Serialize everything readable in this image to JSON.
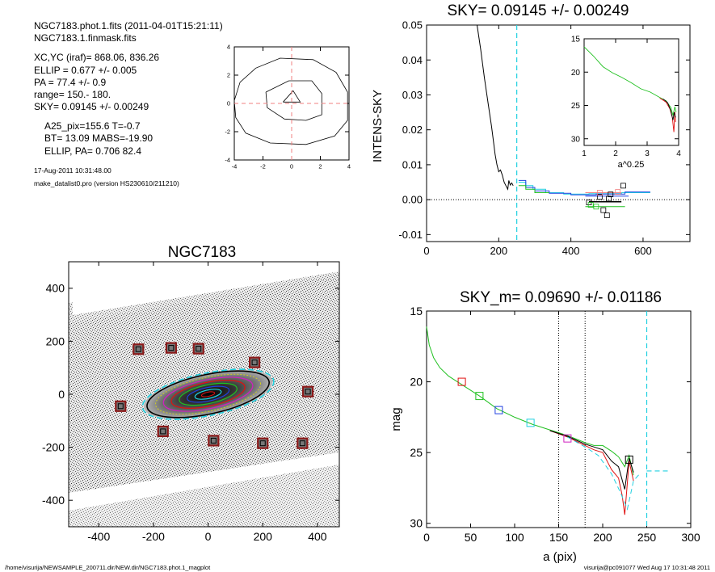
{
  "header": {
    "line1": "NGC7183.phot.1.fits  (2011-04-01T15:21:11)",
    "line2": "NGC7183.1.finmask.fits",
    "xcyc": "XC,YC (iraf)=   868.06, 836.26",
    "ellip": "ELLIP = 0.677 +/- 0.005",
    "pa": "PA    = 77.4 +/-   0.9",
    "range": "range=  150.-  180.",
    "sky": "SKY= 0.09145 +/- 0.00249",
    "a25": "A25_pix=155.6   T=-0.7",
    "bt": "BT=  13.09   MABS=-19.90",
    "ellip_pa": "ELLIP, PA= 0.706   82.4",
    "date": "17-Aug-2011 10:31:48.00",
    "prog": "make_datalist0.pro (version HS230610/211210)"
  },
  "footer": {
    "path": "/home/visurija/NEWSAMPLE_200711.dir/NEW.dir/NGC7183.phot.1_magplot",
    "stamp": "visurija@pc091077  Wed Aug 17 10:31:48 2011"
  },
  "colors": {
    "black": "#000000",
    "red": "#e01010",
    "green": "#20c020",
    "blue": "#2040e0",
    "cyan": "#20d0e0",
    "magenta": "#d020c0",
    "darkred": "#8b1a1a",
    "salmon": "#f08080"
  },
  "chart_data": [
    {
      "id": "contour",
      "type": "contour",
      "xlim": [
        -4,
        4
      ],
      "ylim": [
        -4,
        4
      ],
      "xticks": [
        "-4",
        "-2",
        "0",
        "2",
        "4"
      ],
      "yticks": [
        "-4",
        "-2",
        "0",
        "2",
        "4"
      ],
      "contours": [
        [
          [
            -4,
            0.2
          ],
          [
            -3.6,
            1.5
          ],
          [
            -2.5,
            2.5
          ],
          [
            -0.8,
            3.2
          ],
          [
            1.5,
            3.1
          ],
          [
            3.1,
            2.2
          ],
          [
            3.9,
            0.8
          ],
          [
            3.9,
            -1.2
          ],
          [
            3.0,
            -2.3
          ],
          [
            1.0,
            -2.9
          ],
          [
            -1.5,
            -2.8
          ],
          [
            -3.2,
            -2.1
          ],
          [
            -3.9,
            -1.0
          ],
          [
            -4,
            0.2
          ]
        ],
        [
          [
            -1.8,
            0.8
          ],
          [
            -0.2,
            1.6
          ],
          [
            1.4,
            1.6
          ],
          [
            2.1,
            0.7
          ],
          [
            2.1,
            -0.8
          ],
          [
            1.0,
            -1.2
          ],
          [
            -0.5,
            -1.1
          ],
          [
            -1.7,
            -0.3
          ],
          [
            -1.8,
            0.8
          ]
        ],
        [
          [
            -0.6,
            0.1
          ],
          [
            0.1,
            0.9
          ],
          [
            0.6,
            0.1
          ],
          [
            -0.6,
            0.1
          ]
        ]
      ],
      "crosshair": {
        "x": 0,
        "y": 0
      }
    },
    {
      "id": "sky",
      "type": "line",
      "title": "SKY= 0.09145 +/- 0.00249",
      "ylabel": "INTENS-SKY",
      "xlim": [
        0,
        730
      ],
      "ylim": [
        -0.012,
        0.05
      ],
      "xticks": [
        0,
        200,
        400,
        600
      ],
      "yticks": [
        "0.05",
        "0.04",
        "0.03",
        "0.02",
        "0.01",
        "0.00",
        "-0.01"
      ],
      "zero_line": true,
      "vline": 250,
      "series": [
        {
          "color": "black",
          "points": [
            [
              140,
              0.05
            ],
            [
              150,
              0.043
            ],
            [
              160,
              0.035
            ],
            [
              170,
              0.028
            ],
            [
              180,
              0.021
            ],
            [
              185,
              0.017
            ],
            [
              190,
              0.013
            ],
            [
              195,
              0.01
            ],
            [
              200,
              0.008
            ],
            [
              205,
              0.0085
            ],
            [
              210,
              0.007
            ],
            [
              215,
              0.005
            ],
            [
              220,
              0.004
            ],
            [
              225,
              0.003
            ],
            [
              228,
              0.0055
            ],
            [
              232,
              0.0042
            ],
            [
              236,
              0.0048
            ],
            [
              240,
              0.004
            ]
          ]
        },
        {
          "color": "cyan",
          "points": [
            [
              255,
              0.005
            ],
            [
              275,
              0.005
            ],
            [
              275,
              0.004
            ],
            [
              295,
              0.004
            ],
            [
              295,
              0.003
            ],
            [
              330,
              0.003
            ],
            [
              330,
              0.002
            ],
            [
              380,
              0.002
            ],
            [
              380,
              0.0016
            ],
            [
              450,
              0.0016
            ],
            [
              450,
              0.0017
            ],
            [
              540,
              0.0017
            ],
            [
              540,
              0.002
            ],
            [
              620,
              0.002
            ]
          ]
        },
        {
          "color": "blue",
          "points": [
            [
              255,
              0.0055
            ],
            [
              275,
              0.0055
            ],
            [
              275,
              0.0035
            ],
            [
              300,
              0.0035
            ],
            [
              300,
              0.0025
            ],
            [
              340,
              0.0025
            ],
            [
              340,
              0.0018
            ],
            [
              400,
              0.0018
            ],
            [
              400,
              0.0014
            ],
            [
              470,
              0.0014
            ],
            [
              470,
              0.0016
            ],
            [
              550,
              0.0016
            ],
            [
              550,
              0.0022
            ],
            [
              620,
              0.0022
            ]
          ]
        },
        {
          "color": "green",
          "points": [
            [
              255,
              0.004
            ],
            [
              275,
              0.004
            ],
            [
              275,
              0.003
            ],
            [
              300,
              0.003
            ],
            [
              300,
              0.002
            ],
            [
              340,
              0.002
            ]
          ]
        }
      ],
      "bars": [
        {
          "x1": 450,
          "x2": 540,
          "y": -0.0006,
          "color": "black"
        },
        {
          "x1": 440,
          "x2": 550,
          "y": -0.002,
          "color": "green"
        },
        {
          "x1": 440,
          "x2": 540,
          "y": 0.002,
          "color": "salmon"
        },
        {
          "x1": 440,
          "x2": 560,
          "y": 0.001,
          "color": "blue"
        }
      ],
      "squares": [
        {
          "x": 450,
          "y": -0.0008,
          "color": "black"
        },
        {
          "x": 470,
          "y": -0.002,
          "color": "green"
        },
        {
          "x": 480,
          "y": 0.0008,
          "color": "black"
        },
        {
          "x": 490,
          "y": -0.003,
          "color": "black"
        },
        {
          "x": 500,
          "y": -0.0045,
          "color": "black"
        },
        {
          "x": 505,
          "y": 0.0003,
          "color": "black"
        },
        {
          "x": 510,
          "y": 0.0015,
          "color": "black"
        },
        {
          "x": 480,
          "y": 0.002,
          "color": "salmon"
        },
        {
          "x": 530,
          "y": 0.0022,
          "color": "salmon"
        },
        {
          "x": 545,
          "y": 0.004,
          "color": "black"
        },
        {
          "x": 455,
          "y": -0.0015,
          "color": "green"
        }
      ],
      "inset": {
        "xlabel": "a^0.25",
        "xlim": [
          1,
          4
        ],
        "ylim": [
          15,
          31
        ],
        "xticks": [
          "1",
          "2",
          "3",
          "4"
        ],
        "yticks": [
          "15",
          "20",
          "25",
          "30"
        ],
        "series": [
          {
            "color": "green",
            "points": [
              [
                1.0,
                16.2
              ],
              [
                1.3,
                17.6
              ],
              [
                1.6,
                19.2
              ],
              [
                1.9,
                20.1
              ],
              [
                2.2,
                20.8
              ],
              [
                2.5,
                21.6
              ],
              [
                2.8,
                22.5
              ],
              [
                3.1,
                23.0
              ],
              [
                3.4,
                23.8
              ],
              [
                3.6,
                24.3
              ],
              [
                3.75,
                25.3
              ],
              [
                3.82,
                26.5
              ],
              [
                3.88,
                25.2
              ],
              [
                3.92,
                26.0
              ]
            ]
          },
          {
            "color": "red",
            "points": [
              [
                3.4,
                23.9
              ],
              [
                3.6,
                24.5
              ],
              [
                3.72,
                25.5
              ],
              [
                3.8,
                26.8
              ],
              [
                3.85,
                29.0
              ],
              [
                3.88,
                26.0
              ],
              [
                3.9,
                27.5
              ]
            ]
          },
          {
            "color": "black",
            "points": [
              [
                3.5,
                24.0
              ],
              [
                3.65,
                24.6
              ],
              [
                3.75,
                25.8
              ],
              [
                3.82,
                27.2
              ],
              [
                3.86,
                26.0
              ],
              [
                3.9,
                26.8
              ]
            ]
          }
        ]
      }
    },
    {
      "id": "image",
      "type": "image",
      "title": "NGC7183",
      "xlim": [
        -510,
        480
      ],
      "ylim": [
        -500,
        500
      ],
      "xticks": [
        -400,
        -200,
        0,
        200,
        400
      ],
      "yticks": [
        400,
        200,
        0,
        -200,
        -400
      ],
      "squares": [
        {
          "x": -255,
          "y": 170
        },
        {
          "x": -135,
          "y": 175
        },
        {
          "x": -35,
          "y": 172
        },
        {
          "x": 170,
          "y": 120
        },
        {
          "x": 365,
          "y": 10
        },
        {
          "x": -320,
          "y": -45
        },
        {
          "x": -165,
          "y": -140
        },
        {
          "x": 20,
          "y": -175
        },
        {
          "x": 200,
          "y": -185
        },
        {
          "x": 345,
          "y": -185
        }
      ],
      "ellipse": {
        "cx": 0,
        "cy": 0,
        "a": 245,
        "b": 80,
        "angle_deg": 12
      }
    },
    {
      "id": "mag",
      "type": "line",
      "title": "SKY_m=  0.09690 +/- 0.01186",
      "xlabel": "a (pix)",
      "ylabel": "mag",
      "xlim": [
        0,
        300
      ],
      "ylim": [
        15,
        30.3
      ],
      "xticks": [
        0,
        50,
        100,
        150,
        200,
        250,
        300
      ],
      "yticks": [
        "15",
        "20",
        "25",
        "30"
      ],
      "vlines_dotted": [
        150,
        180
      ],
      "vline_cyan": 250,
      "sky_level": {
        "x1": 250,
        "x2": 275,
        "y": 26.3
      },
      "series": [
        {
          "color": "green",
          "points": [
            [
              0,
              16.1
            ],
            [
              3,
              17.4
            ],
            [
              8,
              18.3
            ],
            [
              15,
              19.0
            ],
            [
              25,
              19.6
            ],
            [
              40,
              20.2
            ],
            [
              60,
              21.0
            ],
            [
              80,
              21.9
            ],
            [
              100,
              22.5
            ],
            [
              120,
              23.0
            ],
            [
              140,
              23.4
            ],
            [
              160,
              23.8
            ],
            [
              180,
              24.3
            ],
            [
              190,
              24.5
            ],
            [
              200,
              24.5
            ],
            [
              210,
              24.9
            ],
            [
              218,
              25.3
            ],
            [
              225,
              26.0
            ],
            [
              230,
              25.2
            ],
            [
              235,
              26.6
            ]
          ]
        },
        {
          "color": "red",
          "points": [
            [
              140,
              23.45
            ],
            [
              160,
              23.9
            ],
            [
              180,
              24.5
            ],
            [
              190,
              24.8
            ],
            [
              200,
              25.0
            ],
            [
              210,
              26.2
            ],
            [
              218,
              26.8
            ],
            [
              222,
              28.0
            ],
            [
              225,
              29.4
            ],
            [
              230,
              25.6
            ],
            [
              235,
              27.0
            ]
          ]
        },
        {
          "color": "black",
          "points": [
            [
              140,
              23.45
            ],
            [
              160,
              23.85
            ],
            [
              180,
              24.4
            ],
            [
              190,
              24.6
            ],
            [
              200,
              24.8
            ],
            [
              210,
              25.6
            ],
            [
              218,
              26.0
            ],
            [
              225,
              27.6
            ],
            [
              230,
              25.4
            ],
            [
              235,
              26.4
            ]
          ]
        },
        {
          "color": "cyan",
          "dashed": true,
          "points": [
            [
              160,
              23.9
            ],
            [
              180,
              24.6
            ],
            [
              195,
              25.2
            ],
            [
              210,
              26.5
            ],
            [
              220,
              27.8
            ],
            [
              228,
              29.0
            ],
            [
              235,
              27.0
            ],
            [
              242,
              26.5
            ]
          ]
        }
      ],
      "squares": [
        {
          "x": 40,
          "y": 20.0,
          "color": "red"
        },
        {
          "x": 60,
          "y": 21.0,
          "color": "green"
        },
        {
          "x": 82,
          "y": 22.0,
          "color": "blue"
        },
        {
          "x": 118,
          "y": 22.9,
          "color": "cyan"
        },
        {
          "x": 160,
          "y": 24.0,
          "color": "magenta"
        },
        {
          "x": 230,
          "y": 25.5,
          "color": "black"
        }
      ]
    }
  ]
}
